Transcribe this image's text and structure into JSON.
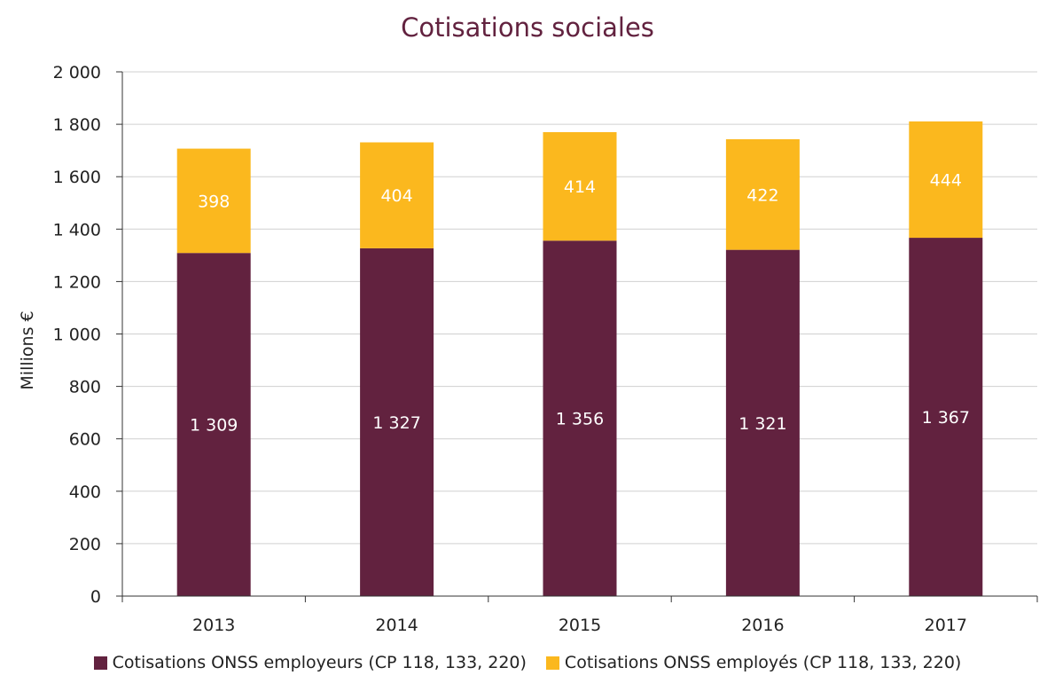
{
  "chart_data": {
    "type": "bar",
    "stacked": true,
    "title": "Cotisations sociales",
    "xlabel": "",
    "ylabel": "Millions €",
    "categories": [
      "2013",
      "2014",
      "2015",
      "2016",
      "2017"
    ],
    "series": [
      {
        "name": "Cotisations ONSS employeurs (CP 118, 133, 220)",
        "color": "#62223f",
        "values": [
          1309,
          1327,
          1356,
          1321,
          1367
        ],
        "labels": [
          "1 309",
          "1 327",
          "1 356",
          "1 321",
          "1 367"
        ]
      },
      {
        "name": "Cotisations ONSS employés (CP 118, 133, 220)",
        "color": "#fbb81e",
        "values": [
          398,
          404,
          414,
          422,
          444
        ],
        "labels": [
          "398",
          "404",
          "414",
          "422",
          "444"
        ]
      }
    ],
    "ylim": [
      0,
      2000
    ],
    "yticks": [
      0,
      200,
      400,
      600,
      800,
      1000,
      1200,
      1400,
      1600,
      1800,
      2000
    ],
    "ytick_labels": [
      "0",
      "200",
      "400",
      "600",
      "800",
      "1 000",
      "1 200",
      "1 400",
      "1 600",
      "1 800",
      "2 000"
    ],
    "grid": true,
    "legend_position": "bottom"
  },
  "colors": {
    "title": "#62223f",
    "grid": "#d0d0d0",
    "axis": "#333333"
  }
}
